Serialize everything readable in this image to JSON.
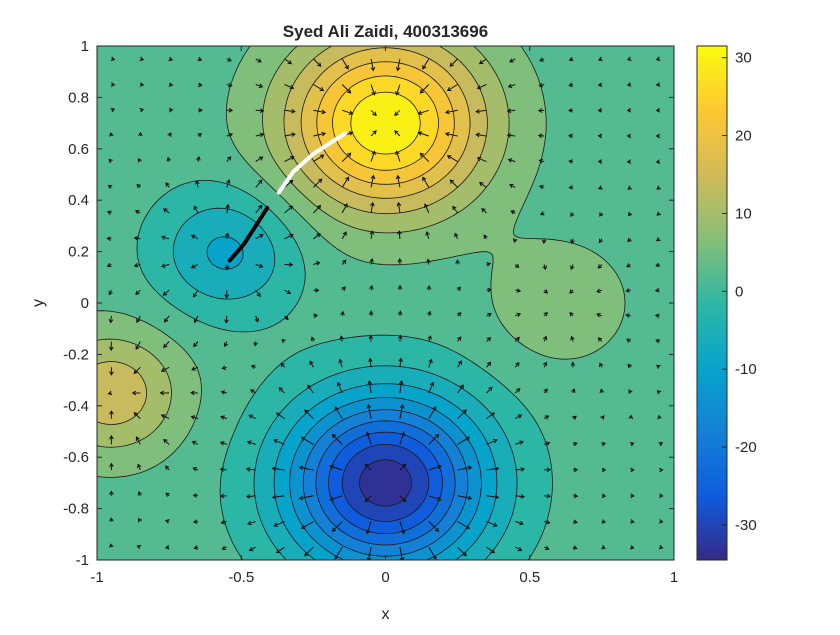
{
  "chart_data": {
    "type": "heatmap",
    "subtype": "filled-contour-with-quiver",
    "title": "Syed Ali Zaidi, 400313696",
    "xlabel": "x",
    "ylabel": "y",
    "xlim": [
      -1,
      1
    ],
    "ylim": [
      -1,
      1
    ],
    "x_ticks": [
      "-1",
      "-0.5",
      "0",
      "0.5",
      "1"
    ],
    "y_ticks": [
      "1",
      "0.8",
      "0.6",
      "0.4",
      "0.2",
      "0",
      "-0.2",
      "-0.4",
      "-0.6",
      "-0.8",
      "-1"
    ],
    "colorbar": {
      "colormap": "parula",
      "range": [
        -34.5,
        31.5
      ],
      "ticks": [
        "30",
        "20",
        "10",
        "0",
        "-10",
        "-20",
        "-30"
      ]
    },
    "field_extrema": [
      {
        "kind": "max",
        "x": 0.0,
        "y": 0.7,
        "value": 31.5
      },
      {
        "kind": "min",
        "x": 0.0,
        "y": -0.7,
        "value": -34.5
      },
      {
        "kind": "min",
        "x": -0.55,
        "y": 0.2,
        "value": -9
      },
      {
        "kind": "max",
        "x": -0.95,
        "y": -0.35,
        "value": 15
      },
      {
        "kind": "max",
        "x": 0.6,
        "y": 0.0,
        "value": 7
      }
    ],
    "paths": [
      {
        "color": "#000000",
        "points": [
          [
            -0.54,
            0.165
          ],
          [
            -0.49,
            0.23
          ],
          [
            -0.45,
            0.3
          ],
          [
            -0.41,
            0.37
          ]
        ]
      },
      {
        "color": "#ffffff",
        "points": [
          [
            -0.37,
            0.43
          ],
          [
            -0.32,
            0.51
          ],
          [
            -0.25,
            0.58
          ],
          [
            -0.14,
            0.66
          ]
        ]
      }
    ]
  }
}
